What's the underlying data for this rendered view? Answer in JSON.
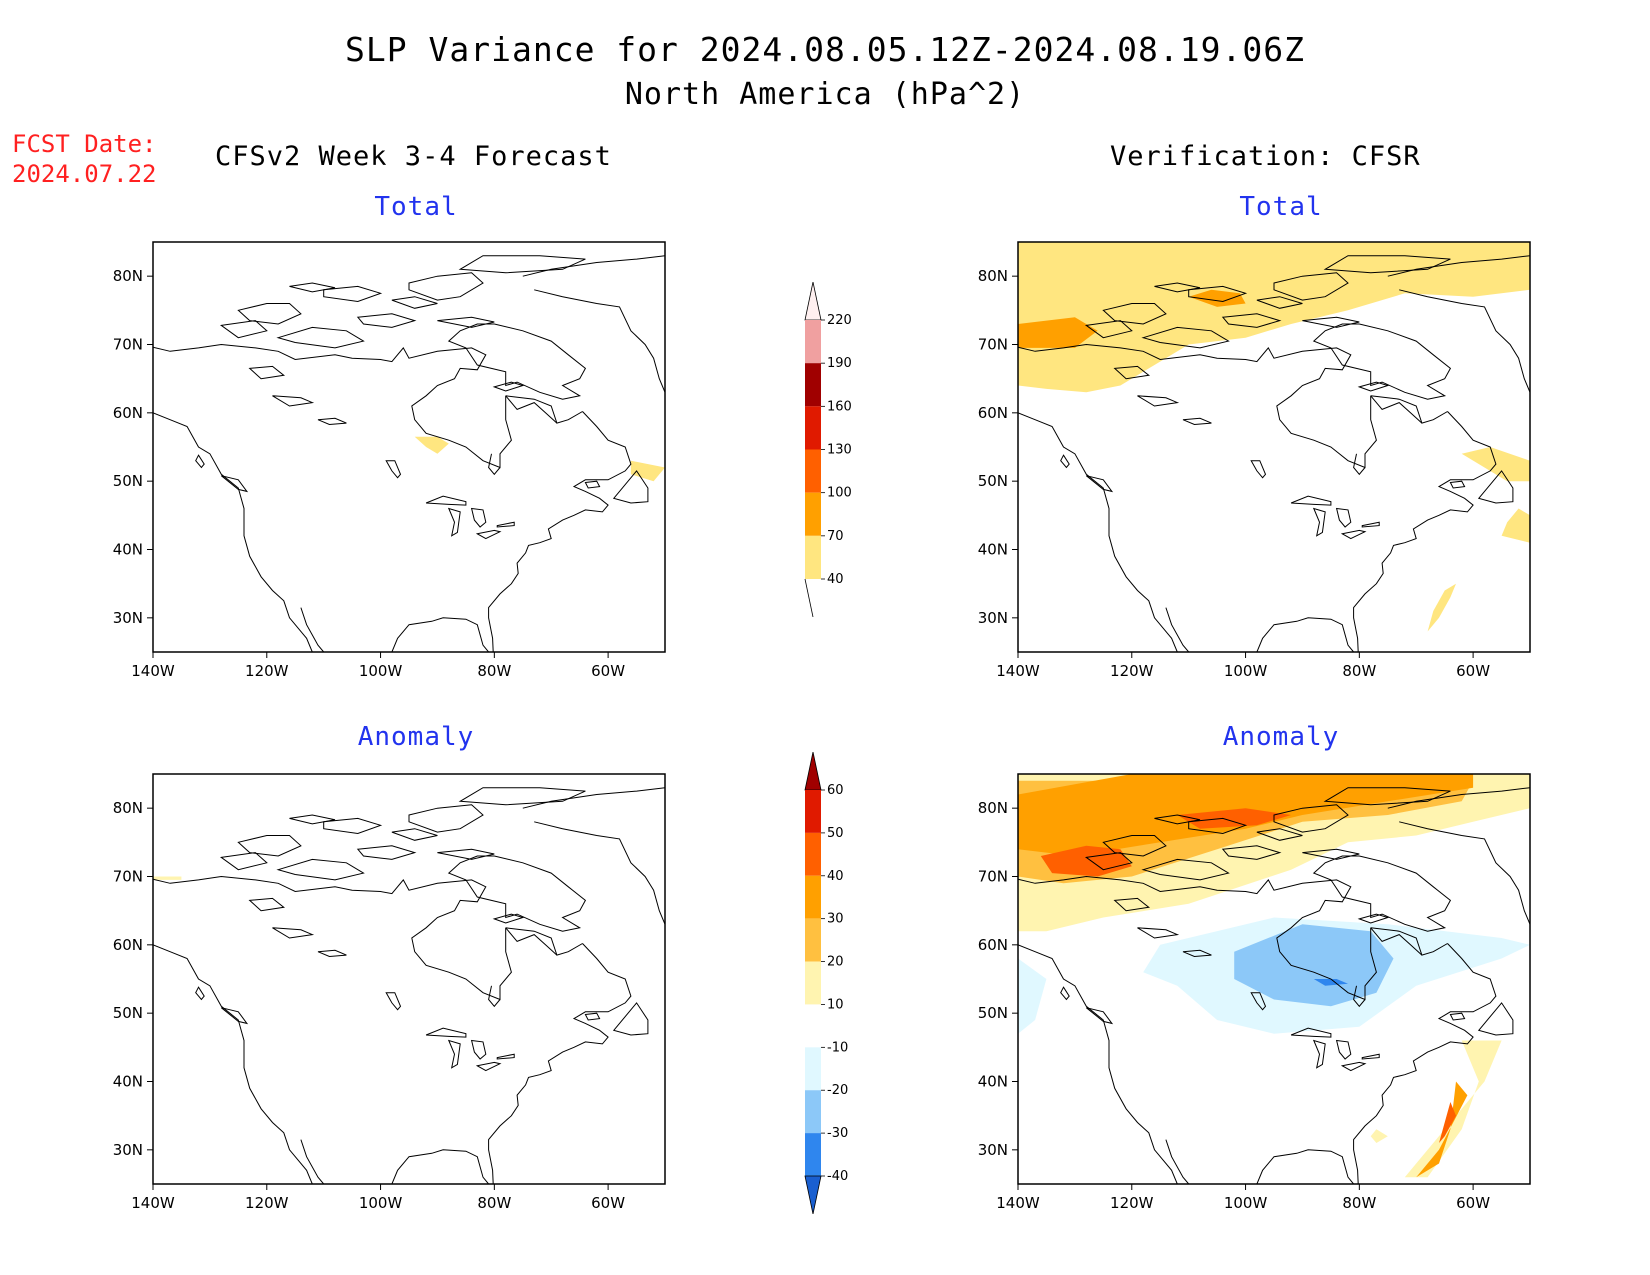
{
  "title": {
    "line1": "SLP Variance for 2024.08.05.12Z-2024.08.19.06Z",
    "line2": "North America (hPa^2)"
  },
  "forecast": {
    "label": "FCST Date:",
    "date": "2024.07.22"
  },
  "columns": {
    "left": "CFSv2 Week 3-4 Forecast",
    "right": "Verification: CFSR"
  },
  "panels": {
    "fc_total": {
      "subtitle": "Total"
    },
    "vf_total": {
      "subtitle": "Total"
    },
    "fc_anom": {
      "subtitle": "Anomaly"
    },
    "vf_anom": {
      "subtitle": "Anomaly"
    }
  },
  "axes": {
    "lat_labels": [
      "80N",
      "70N",
      "60N",
      "50N",
      "40N",
      "30N"
    ],
    "lat_values": [
      80,
      70,
      60,
      50,
      40,
      30
    ],
    "lon_labels": [
      "140W",
      "120W",
      "100W",
      "80W",
      "60W"
    ],
    "lon_values": [
      -140,
      -120,
      -100,
      -80,
      -60
    ],
    "lon_range": [
      -140,
      -50
    ],
    "lat_range": [
      25,
      85
    ]
  },
  "colorbars": {
    "total": {
      "levels": [
        "40",
        "70",
        "100",
        "130",
        "160",
        "190",
        "220"
      ],
      "colors": [
        "#ffe680",
        "#ffa000",
        "#ff6000",
        "#e01a00",
        "#a00000",
        "#f0a0a0",
        "#fff0f0"
      ]
    },
    "anomaly": {
      "levels": [
        "-40",
        "-30",
        "-20",
        "-10",
        "10",
        "20",
        "30",
        "40",
        "50",
        "60"
      ],
      "colors": [
        "#1a5fd0",
        "#2f86ee",
        "#8cc8f8",
        "#e0f8ff",
        "#ffffff",
        "#fff4b0",
        "#ffc040",
        "#ffa000",
        "#ff6000",
        "#e01a00",
        "#a00000"
      ]
    }
  },
  "colors": {
    "title_blue": "#2233ee",
    "fcst_red": "#ff2020",
    "total_yellow": "#ffe680",
    "total_orange": "#ffa000",
    "anom_lightblue": "#e0f8ff",
    "anom_blue": "#8cc8f8",
    "anom_darkblue": "#2f86ee"
  }
}
